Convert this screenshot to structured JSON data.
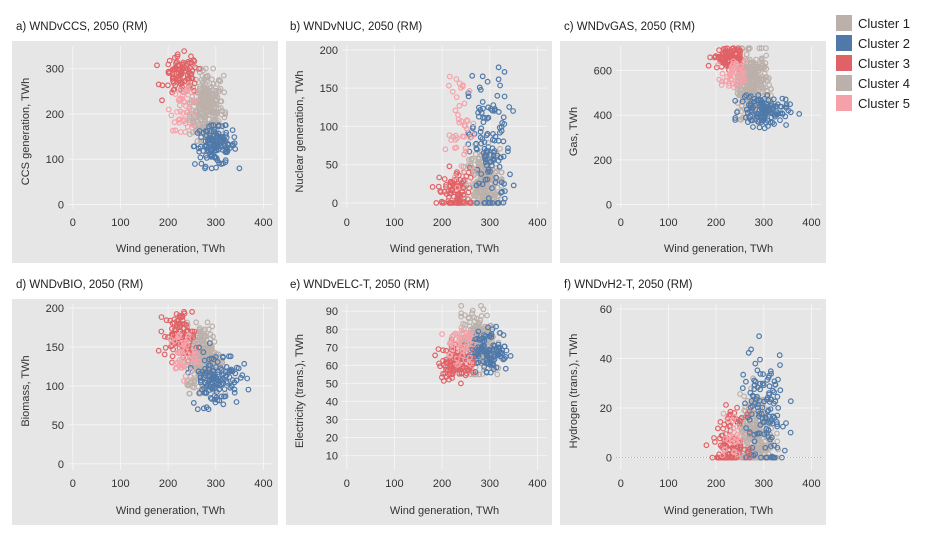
{
  "legend": [
    {
      "name": "Cluster 1",
      "color": "#bcb0aa"
    },
    {
      "name": "Cluster 2",
      "color": "#4f79a9"
    },
    {
      "name": "Cluster 3",
      "color": "#e06266"
    },
    {
      "name": "Cluster 4",
      "color": "#bcb0aa"
    },
    {
      "name": "Cluster 5",
      "color": "#f6a1a9"
    }
  ],
  "chart_data": [
    {
      "type": "scatter",
      "title": "a) WNDvCCS, 2050 (RM)",
      "xlabel": "Wind generation, TWh",
      "ylabel": "CCS generation, TWh",
      "xticks": [
        0,
        100,
        200,
        300,
        400
      ],
      "yticks": [
        0,
        100,
        200,
        300
      ],
      "xlim": [
        -10,
        420
      ],
      "ylim": [
        -10,
        350
      ],
      "grid": true,
      "clusters": [
        {
          "name": "Cluster 4",
          "color": "#bcb0aa",
          "cx": 280,
          "cy": 215,
          "sx": 18,
          "sy": 40,
          "n": 260,
          "xr": [
            245,
            320
          ],
          "yr": [
            140,
            300
          ]
        },
        {
          "name": "Cluster 2",
          "color": "#4f79a9",
          "cx": 300,
          "cy": 130,
          "sx": 22,
          "sy": 22,
          "n": 130,
          "xr": [
            230,
            390
          ],
          "yr": [
            80,
            175
          ]
        },
        {
          "name": "Cluster 3",
          "color": "#e06266",
          "cx": 228,
          "cy": 285,
          "sx": 18,
          "sy": 22,
          "n": 90,
          "xr": [
            175,
            265
          ],
          "yr": [
            230,
            340
          ]
        },
        {
          "name": "Cluster 5",
          "color": "#f6a1a9",
          "cx": 235,
          "cy": 215,
          "sx": 15,
          "sy": 25,
          "n": 45,
          "xr": [
            190,
            270
          ],
          "yr": [
            160,
            265
          ]
        }
      ]
    },
    {
      "type": "scatter",
      "title": "b) WNDvNUC, 2050 (RM)",
      "xlabel": "Wind generation, TWh",
      "ylabel": "Nuclear generation, TWh",
      "xticks": [
        0,
        100,
        200,
        300,
        400
      ],
      "yticks": [
        0,
        50,
        100,
        150,
        200
      ],
      "xlim": [
        -10,
        420
      ],
      "ylim": [
        -8,
        205
      ],
      "grid": true,
      "clusters": [
        {
          "name": "Cluster 4",
          "color": "#bcb0aa",
          "cx": 285,
          "cy": 20,
          "sx": 18,
          "sy": 25,
          "n": 260,
          "xr": [
            245,
            325
          ],
          "yr": [
            0,
            110
          ]
        },
        {
          "name": "Cluster 2",
          "color": "#4f79a9",
          "cx": 300,
          "cy": 70,
          "sx": 22,
          "sy": 50,
          "n": 130,
          "xr": [
            255,
            380
          ],
          "yr": [
            0,
            195
          ]
        },
        {
          "name": "Cluster 3",
          "color": "#e06266",
          "cx": 228,
          "cy": 15,
          "sx": 18,
          "sy": 15,
          "n": 90,
          "xr": [
            180,
            260
          ],
          "yr": [
            0,
            60
          ]
        },
        {
          "name": "Cluster 5",
          "color": "#f6a1a9",
          "cx": 240,
          "cy": 90,
          "sx": 15,
          "sy": 40,
          "n": 45,
          "xr": [
            195,
            270
          ],
          "yr": [
            20,
            165
          ]
        }
      ]
    },
    {
      "type": "scatter",
      "title": "c) WNDvGAS, 2050 (RM)",
      "xlabel": "Wind generation, TWh",
      "ylabel": "Gas, TWh",
      "xticks": [
        0,
        100,
        200,
        300,
        400
      ],
      "yticks": [
        0,
        200,
        400,
        600
      ],
      "xlim": [
        -10,
        420
      ],
      "ylim": [
        -20,
        710
      ],
      "grid": true,
      "clusters": [
        {
          "name": "Cluster 4",
          "color": "#bcb0aa",
          "cx": 275,
          "cy": 540,
          "sx": 18,
          "sy": 70,
          "n": 260,
          "xr": [
            245,
            315
          ],
          "yr": [
            380,
            700
          ]
        },
        {
          "name": "Cluster 2",
          "color": "#4f79a9",
          "cx": 300,
          "cy": 420,
          "sx": 25,
          "sy": 35,
          "n": 130,
          "xr": [
            240,
            395
          ],
          "yr": [
            330,
            490
          ]
        },
        {
          "name": "Cluster 3",
          "color": "#e06266",
          "cx": 225,
          "cy": 660,
          "sx": 16,
          "sy": 25,
          "n": 90,
          "xr": [
            180,
            250
          ],
          "yr": [
            590,
            700
          ]
        },
        {
          "name": "Cluster 5",
          "color": "#f6a1a9",
          "cx": 235,
          "cy": 570,
          "sx": 12,
          "sy": 35,
          "n": 45,
          "xr": [
            200,
            260
          ],
          "yr": [
            500,
            650
          ]
        }
      ]
    },
    {
      "type": "scatter",
      "title": "d) WNDvBIO, 2050 (RM)",
      "xlabel": "Wind generation, TWh",
      "ylabel": "Biomass, TWh",
      "xticks": [
        0,
        100,
        200,
        300,
        400
      ],
      "yticks": [
        0,
        50,
        100,
        150,
        200
      ],
      "xlim": [
        -10,
        420
      ],
      "ylim": [
        -8,
        205
      ],
      "grid": true,
      "clusters": [
        {
          "name": "Cluster 4",
          "color": "#bcb0aa",
          "cx": 275,
          "cy": 135,
          "sx": 18,
          "sy": 22,
          "n": 260,
          "xr": [
            240,
            320
          ],
          "yr": [
            90,
            195
          ]
        },
        {
          "name": "Cluster 2",
          "color": "#4f79a9",
          "cx": 300,
          "cy": 110,
          "sx": 25,
          "sy": 18,
          "n": 130,
          "xr": [
            235,
            395
          ],
          "yr": [
            70,
            160
          ]
        },
        {
          "name": "Cluster 3",
          "color": "#e06266",
          "cx": 225,
          "cy": 165,
          "sx": 16,
          "sy": 15,
          "n": 90,
          "xr": [
            175,
            260
          ],
          "yr": [
            130,
            195
          ]
        },
        {
          "name": "Cluster 5",
          "color": "#f6a1a9",
          "cx": 230,
          "cy": 140,
          "sx": 14,
          "sy": 15,
          "n": 45,
          "xr": [
            200,
            265
          ],
          "yr": [
            100,
            195
          ]
        }
      ]
    },
    {
      "type": "scatter",
      "title": "e) WNDvELC-T, 2050 (RM)",
      "xlabel": "Wind generation, TWh",
      "ylabel": "Electricity (trans.), TWh",
      "xticks": [
        0,
        100,
        200,
        300,
        400
      ],
      "yticks": [
        10,
        20,
        30,
        40,
        50,
        60,
        70,
        80,
        90
      ],
      "xlim": [
        -10,
        420
      ],
      "ylim": [
        2,
        94
      ],
      "grid": true,
      "clusters": [
        {
          "name": "Cluster 4",
          "color": "#bcb0aa",
          "cx": 275,
          "cy": 72,
          "sx": 18,
          "sy": 8,
          "n": 260,
          "xr": [
            240,
            325
          ],
          "yr": [
            55,
            93
          ]
        },
        {
          "name": "Cluster 2",
          "color": "#4f79a9",
          "cx": 300,
          "cy": 68,
          "sx": 20,
          "sy": 6,
          "n": 110,
          "xr": [
            255,
            395
          ],
          "yr": [
            56,
            82
          ]
        },
        {
          "name": "Cluster 3",
          "color": "#e06266",
          "cx": 228,
          "cy": 62,
          "sx": 18,
          "sy": 5,
          "n": 100,
          "xr": [
            175,
            265
          ],
          "yr": [
            50,
            90
          ]
        },
        {
          "name": "Cluster 5",
          "color": "#f6a1a9",
          "cx": 235,
          "cy": 72,
          "sx": 14,
          "sy": 6,
          "n": 40,
          "xr": [
            200,
            265
          ],
          "yr": [
            58,
            88
          ]
        }
      ]
    },
    {
      "type": "scatter",
      "title": "f) WNDvH2-T, 2050 (RM)",
      "xlabel": "Wind generation, TWh",
      "ylabel": "Hydrogen (trans.), TWh",
      "xticks": [
        0,
        100,
        200,
        300,
        400
      ],
      "yticks": [
        0,
        20,
        40,
        60
      ],
      "xlim": [
        -10,
        420
      ],
      "ylim": [
        -5,
        62
      ],
      "grid": true,
      "clusters": [
        {
          "name": "Cluster 4",
          "color": "#bcb0aa",
          "cx": 285,
          "cy": 8,
          "sx": 18,
          "sy": 8,
          "n": 260,
          "xr": [
            250,
            330
          ],
          "yr": [
            0,
            32
          ]
        },
        {
          "name": "Cluster 2",
          "color": "#4f79a9",
          "cx": 300,
          "cy": 18,
          "sx": 25,
          "sy": 12,
          "n": 130,
          "xr": [
            245,
            390
          ],
          "yr": [
            0,
            58
          ]
        },
        {
          "name": "Cluster 3",
          "color": "#e06266",
          "cx": 230,
          "cy": 6,
          "sx": 18,
          "sy": 6,
          "n": 100,
          "xr": [
            175,
            270
          ],
          "yr": [
            0,
            24
          ]
        },
        {
          "name": "Cluster 5",
          "color": "#f6a1a9",
          "cx": 235,
          "cy": 8,
          "sx": 12,
          "sy": 5,
          "n": 25,
          "xr": [
            205,
            265
          ],
          "yr": [
            0,
            30
          ]
        }
      ]
    }
  ]
}
